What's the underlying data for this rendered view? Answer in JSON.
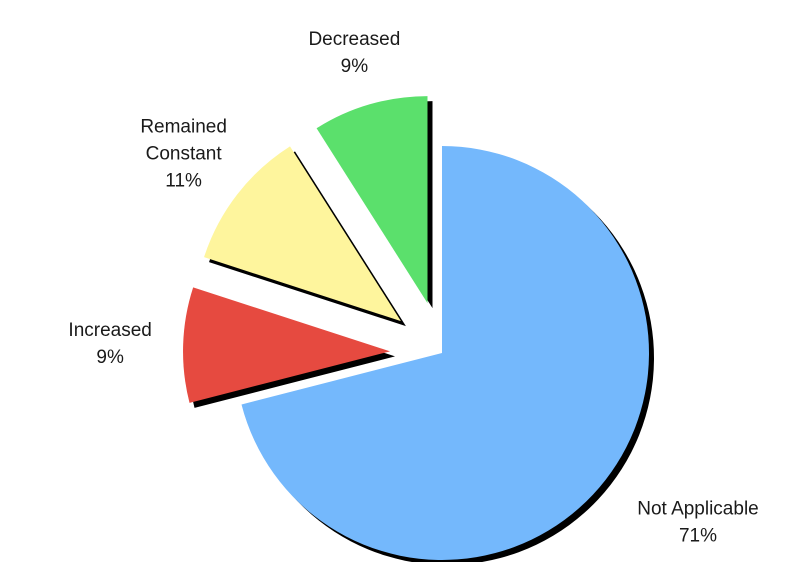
{
  "chart_data": {
    "type": "pie",
    "title": "",
    "slices": [
      {
        "label": "Not Applicable",
        "display_label": [
          "Not Applicable"
        ],
        "value": 71,
        "value_label": "71%",
        "color": "#74b8fc",
        "exploded": false
      },
      {
        "label": "Increased",
        "display_label": [
          "Increased"
        ],
        "value": 9,
        "value_label": "9%",
        "color": "#e64a40",
        "exploded": true
      },
      {
        "label": "Remained Constant",
        "display_label": [
          "Remained",
          "Constant"
        ],
        "value": 11,
        "value_label": "11%",
        "color": "#fef59d",
        "exploded": true
      },
      {
        "label": "Decreased",
        "display_label": [
          "Decreased"
        ],
        "value": 9,
        "value_label": "9%",
        "color": "#5be06c",
        "exploded": true
      }
    ],
    "legend": "none",
    "shadow_color": "#000000"
  }
}
